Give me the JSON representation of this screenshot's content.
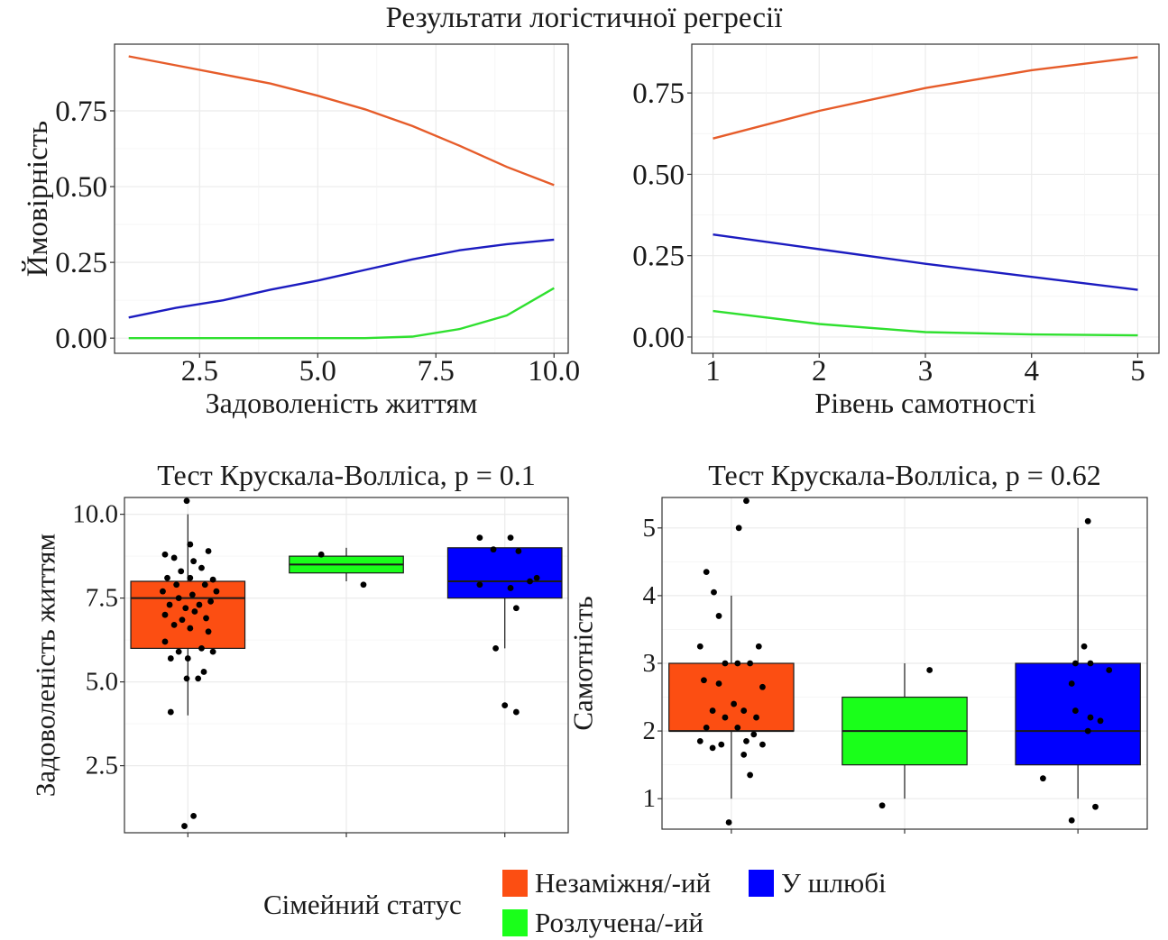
{
  "main_title": "Результати логістичної регресії",
  "colors": {
    "single": "#fc4e12",
    "divorced": "#1aff1a",
    "married": "#0000ff",
    "line_single": "#e65c2a",
    "line_married": "#1c1cc0",
    "line_divorced": "#2fe02f"
  },
  "legend": {
    "title": "Сімейний статус",
    "items": [
      {
        "label": "Незаміжня/-ий",
        "color": "#fc4e12"
      },
      {
        "label": "У шлюбі",
        "color": "#0000ff"
      },
      {
        "label": "Розлучена/-ий",
        "color": "#1aff1a"
      }
    ]
  },
  "chart_data": [
    {
      "type": "line",
      "title": "",
      "xlabel": "Задоволеність життям",
      "ylabel": "Ймовірність",
      "xlim": [
        0.7,
        10.3
      ],
      "ylim": [
        -0.05,
        0.97
      ],
      "x_ticks": [
        2.5,
        5.0,
        7.5,
        10.0
      ],
      "x_tick_labels": [
        "2.5",
        "5.0",
        "7.5",
        "10.0"
      ],
      "y_ticks": [
        0,
        0.25,
        0.5,
        0.75
      ],
      "y_tick_labels": [
        "0.00",
        "0.25",
        "0.50",
        "0.75"
      ],
      "grid": true,
      "x": [
        1,
        2,
        3,
        4,
        5,
        6,
        7,
        8,
        9,
        10
      ],
      "series": [
        {
          "color": "#e65c2a",
          "values": [
            0.93,
            0.9,
            0.87,
            0.84,
            0.8,
            0.755,
            0.7,
            0.635,
            0.565,
            0.505
          ]
        },
        {
          "color": "#1c1cc0",
          "values": [
            0.068,
            0.1,
            0.125,
            0.16,
            0.19,
            0.225,
            0.26,
            0.29,
            0.31,
            0.325
          ]
        },
        {
          "color": "#2fe02f",
          "values": [
            0.0,
            0.0,
            0.0,
            0.0,
            0.0,
            0.0,
            0.005,
            0.03,
            0.075,
            0.165
          ]
        }
      ]
    },
    {
      "type": "line",
      "title": "",
      "xlabel": "Рівень самотності",
      "ylabel": "",
      "xlim": [
        0.8,
        5.2
      ],
      "ylim": [
        -0.05,
        0.9
      ],
      "x_ticks": [
        1,
        2,
        3,
        4,
        5
      ],
      "x_tick_labels": [
        "1",
        "2",
        "3",
        "4",
        "5"
      ],
      "y_ticks": [
        0,
        0.25,
        0.5,
        0.75
      ],
      "y_tick_labels": [
        "0.00",
        "0.25",
        "0.50",
        "0.75"
      ],
      "grid": true,
      "x": [
        1,
        2,
        3,
        4,
        5
      ],
      "series": [
        {
          "color": "#e65c2a",
          "values": [
            0.61,
            0.695,
            0.765,
            0.82,
            0.86
          ]
        },
        {
          "color": "#1c1cc0",
          "values": [
            0.315,
            0.27,
            0.225,
            0.185,
            0.145
          ]
        },
        {
          "color": "#2fe02f",
          "values": [
            0.08,
            0.04,
            0.015,
            0.008,
            0.005
          ]
        }
      ]
    },
    {
      "type": "box",
      "title": "Тест Крускала-Волліса, p = 0.1",
      "xlabel": "",
      "ylabel": "Задоволеність життям",
      "ylim": [
        0.5,
        10.5
      ],
      "y_ticks": [
        2.5,
        5.0,
        7.5,
        10.0
      ],
      "y_tick_labels": [
        "2.5",
        "5.0",
        "7.5",
        "10.0"
      ],
      "grid": true,
      "boxes": [
        {
          "group": "single",
          "color": "#fc4e12",
          "min": 4,
          "q1": 6,
          "median": 7.5,
          "q3": 8,
          "max": 10,
          "points": [
            [
              -0.01,
              10.4
            ],
            [
              0.02,
              9.1
            ],
            [
              -0.2,
              8.8
            ],
            [
              0.18,
              8.9
            ],
            [
              -0.12,
              8.7
            ],
            [
              0.05,
              8.6
            ],
            [
              -0.06,
              8.3
            ],
            [
              0.12,
              8.4
            ],
            [
              -0.18,
              8.1
            ],
            [
              0.22,
              8.05
            ],
            [
              0.02,
              8.1
            ],
            [
              -0.1,
              7.9
            ],
            [
              0.15,
              7.9
            ],
            [
              0.25,
              7.7
            ],
            [
              -0.22,
              7.7
            ],
            [
              0.04,
              7.6
            ],
            [
              -0.08,
              7.5
            ],
            [
              0.2,
              7.4
            ],
            [
              -0.16,
              7.3
            ],
            [
              0.1,
              7.3
            ],
            [
              -0.02,
              7.2
            ],
            [
              0.06,
              7.1
            ],
            [
              -0.2,
              7.0
            ],
            [
              0.16,
              6.9
            ],
            [
              -0.05,
              6.85
            ],
            [
              -0.12,
              6.7
            ],
            [
              0.02,
              6.6
            ],
            [
              0.18,
              6.5
            ],
            [
              -0.2,
              6.2
            ],
            [
              0.12,
              6.0
            ],
            [
              0.22,
              5.9
            ],
            [
              -0.08,
              5.9
            ],
            [
              -0.15,
              5.7
            ],
            [
              0.0,
              5.7
            ],
            [
              -0.01,
              5.1
            ],
            [
              0.14,
              5.3
            ],
            [
              0.09,
              5.1
            ],
            [
              -0.15,
              4.1
            ],
            [
              0.05,
              1.0
            ],
            [
              -0.03,
              0.7
            ]
          ]
        },
        {
          "group": "divorced",
          "color": "#1aff1a",
          "min": 8,
          "q1": 8.25,
          "median": 8.5,
          "q3": 8.75,
          "max": 9,
          "points": [
            [
              -0.22,
              8.8
            ],
            [
              0.15,
              7.9
            ]
          ]
        },
        {
          "group": "married",
          "color": "#0000ff",
          "min": 6,
          "q1": 7.5,
          "median": 8,
          "q3": 9,
          "max": 9,
          "points": [
            [
              -0.22,
              9.3
            ],
            [
              0.05,
              9.3
            ],
            [
              -0.1,
              8.95
            ],
            [
              0.12,
              8.9
            ],
            [
              0.28,
              8.1
            ],
            [
              0.22,
              8.0
            ],
            [
              -0.22,
              7.9
            ],
            [
              0.05,
              7.8
            ],
            [
              0.1,
              7.2
            ],
            [
              -0.08,
              6.0
            ],
            [
              0.0,
              4.3
            ],
            [
              0.1,
              4.1
            ]
          ]
        }
      ]
    },
    {
      "type": "box",
      "title": "Тест Крускала-Волліса, p = 0.62",
      "xlabel": "",
      "ylabel": "Самотність",
      "ylim": [
        0.55,
        5.45
      ],
      "y_ticks": [
        1,
        2,
        3,
        4,
        5
      ],
      "y_tick_labels": [
        "1",
        "2",
        "3",
        "4",
        "5"
      ],
      "grid": true,
      "boxes": [
        {
          "group": "single",
          "color": "#fc4e12",
          "min": 1,
          "q1": 2,
          "median": 2,
          "q3": 3,
          "max": 4,
          "points": [
            [
              -0.2,
              4.35
            ],
            [
              -0.14,
              4.05
            ],
            [
              -0.1,
              3.7
            ],
            [
              0.06,
              5.0
            ],
            [
              0.12,
              5.4
            ],
            [
              -0.25,
              3.25
            ],
            [
              0.22,
              3.25
            ],
            [
              -0.05,
              3.0
            ],
            [
              0.05,
              3.0
            ],
            [
              0.15,
              3.0
            ],
            [
              -0.22,
              2.75
            ],
            [
              0.25,
              2.65
            ],
            [
              -0.1,
              2.7
            ],
            [
              0.02,
              2.4
            ],
            [
              -0.15,
              2.3
            ],
            [
              0.1,
              2.3
            ],
            [
              0.2,
              2.2
            ],
            [
              -0.05,
              2.2
            ],
            [
              -0.2,
              2.05
            ],
            [
              0.05,
              2.05
            ],
            [
              0.18,
              1.95
            ],
            [
              -0.25,
              1.85
            ],
            [
              0.12,
              1.85
            ],
            [
              -0.08,
              1.8
            ],
            [
              0.25,
              1.8
            ],
            [
              -0.15,
              1.75
            ],
            [
              0.1,
              1.65
            ],
            [
              0.15,
              1.35
            ],
            [
              -0.02,
              0.65
            ]
          ]
        },
        {
          "group": "divorced",
          "color": "#1aff1a",
          "min": 1,
          "q1": 1.5,
          "median": 2,
          "q3": 2.5,
          "max": 3,
          "points": [
            [
              0.2,
              2.9
            ],
            [
              -0.18,
              0.9
            ]
          ]
        },
        {
          "group": "married",
          "color": "#0000ff",
          "min": 1,
          "q1": 1.5,
          "median": 2,
          "q3": 3,
          "max": 5,
          "points": [
            [
              0.08,
              5.1
            ],
            [
              0.05,
              3.25
            ],
            [
              0.1,
              3.0
            ],
            [
              -0.02,
              3.0
            ],
            [
              -0.05,
              2.7
            ],
            [
              -0.02,
              2.3
            ],
            [
              0.1,
              2.2
            ],
            [
              0.18,
              2.15
            ],
            [
              0.08,
              2.0
            ],
            [
              0.25,
              2.9
            ],
            [
              -0.28,
              1.3
            ],
            [
              0.14,
              0.88
            ],
            [
              -0.05,
              0.68
            ]
          ]
        }
      ]
    }
  ]
}
